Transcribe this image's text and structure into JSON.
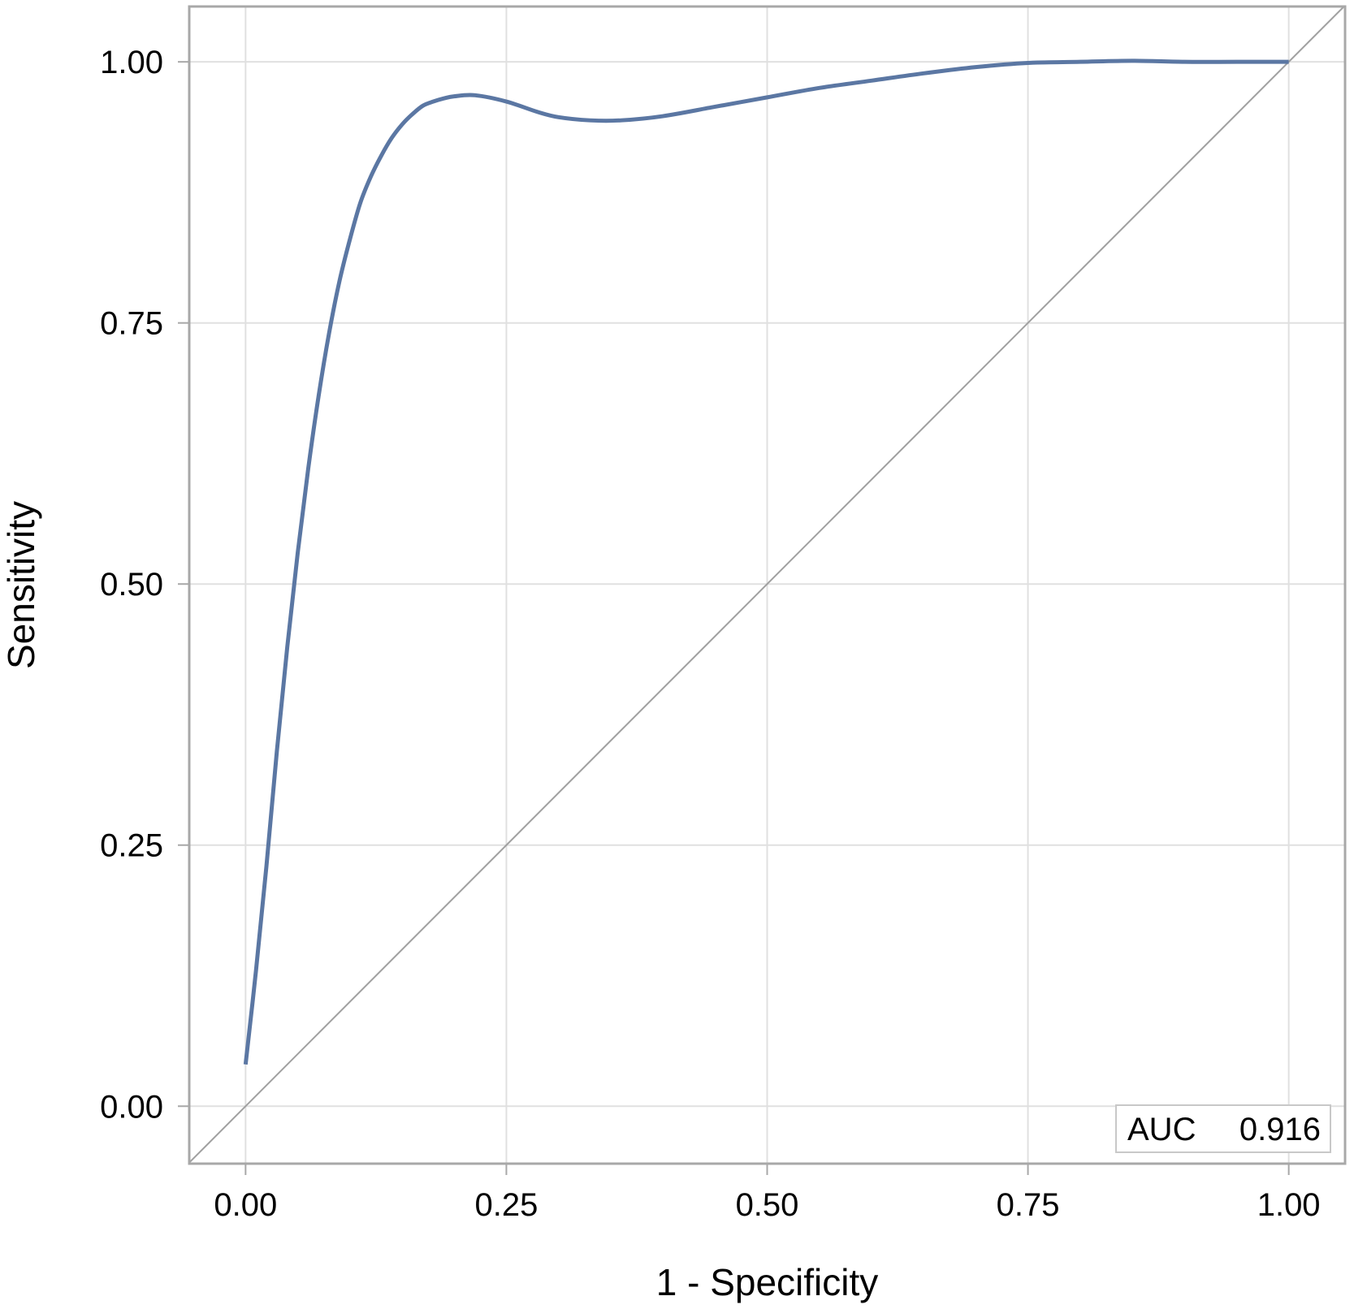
{
  "chart_data": {
    "type": "line",
    "xlabel": "1 - Specificity",
    "ylabel": "Sensitivity",
    "xlim": [
      -0.054,
      1.054
    ],
    "ylim": [
      -0.055,
      1.053
    ],
    "xticks": [
      0,
      0.25,
      0.5,
      0.75,
      1
    ],
    "yticks": [
      0,
      0.25,
      0.5,
      0.75,
      1
    ],
    "xtick_labels": [
      "0.00",
      "0.25",
      "0.50",
      "0.75",
      "1.00"
    ],
    "ytick_labels": [
      "0.00",
      "0.25",
      "0.50",
      "0.75",
      "1.00"
    ],
    "grid": true,
    "series": [
      {
        "color": "#5b77a3",
        "x": [
          0.0,
          0.01,
          0.02,
          0.03,
          0.04,
          0.05,
          0.06,
          0.07,
          0.08,
          0.09,
          0.1,
          0.11,
          0.12,
          0.13,
          0.14,
          0.15,
          0.16,
          0.17,
          0.18,
          0.19,
          0.2,
          0.22,
          0.25,
          0.28,
          0.3,
          0.33,
          0.36,
          0.4,
          0.45,
          0.5,
          0.55,
          0.6,
          0.65,
          0.7,
          0.75,
          0.8,
          0.85,
          0.9,
          0.95,
          1.0
        ],
        "values": [
          0.04,
          0.13,
          0.23,
          0.34,
          0.44,
          0.53,
          0.61,
          0.68,
          0.74,
          0.79,
          0.83,
          0.865,
          0.89,
          0.91,
          0.927,
          0.94,
          0.95,
          0.958,
          0.962,
          0.965,
          0.967,
          0.968,
          0.962,
          0.952,
          0.947,
          0.944,
          0.944,
          0.948,
          0.957,
          0.966,
          0.975,
          0.982,
          0.989,
          0.995,
          0.999,
          1.0,
          1.001,
          1.0,
          1.0,
          1.0
        ]
      }
    ],
    "reference_line": {
      "x": [
        0,
        1
      ],
      "y": [
        0,
        1
      ],
      "color": "#a0a0a0"
    },
    "annotation": {
      "label": "AUC",
      "value": "0.916"
    }
  },
  "colors": {
    "curve": "#5b77a3",
    "diagonal": "#a0a0a0",
    "grid": "#e0e0e0",
    "frame": "#a8a8a8"
  }
}
